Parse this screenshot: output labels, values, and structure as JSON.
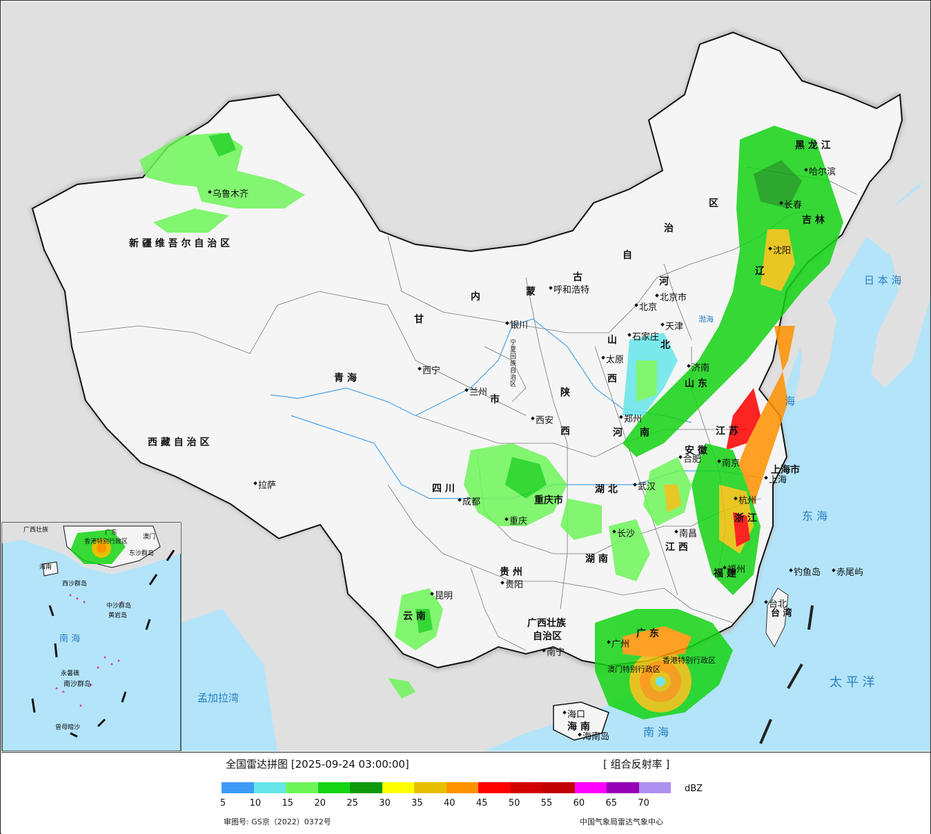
{
  "map": {
    "provinces": [
      {
        "key": "xinjiang",
        "label": "新 疆 维 吾 尔 自 治 区"
      },
      {
        "key": "xizang",
        "label": "西 藏 自 治 区"
      },
      {
        "key": "qinghai",
        "label": "青    海"
      },
      {
        "key": "gansu",
        "label": "甘"
      },
      {
        "key": "neimenggu_1",
        "label": "内"
      },
      {
        "key": "neimenggu_2",
        "label": "蒙"
      },
      {
        "key": "neimenggu_3",
        "label": "古"
      },
      {
        "key": "neimenggu_4",
        "label": "自"
      },
      {
        "key": "neimenggu_5",
        "label": "治"
      },
      {
        "key": "neimenggu_6",
        "label": "区"
      },
      {
        "key": "heilongjiang",
        "label": "黑  龙  江"
      },
      {
        "key": "jilin",
        "label": "吉  林"
      },
      {
        "key": "liaoning",
        "label": "辽"
      },
      {
        "key": "hebei",
        "label": "河"
      },
      {
        "key": "hebei2",
        "label": "北"
      },
      {
        "key": "shanxi",
        "label": "山"
      },
      {
        "key": "shanxi2",
        "label": "西"
      },
      {
        "key": "shaanxi",
        "label": "陕"
      },
      {
        "key": "shaanxi2",
        "label": "西"
      },
      {
        "key": "shandong",
        "label": "山  东"
      },
      {
        "key": "henan",
        "label": "河"
      },
      {
        "key": "henan2",
        "label": "南"
      },
      {
        "key": "sichuan",
        "label": "四    川"
      },
      {
        "key": "chongqing",
        "label": "重庆市"
      },
      {
        "key": "hubei",
        "label": "湖    北"
      },
      {
        "key": "hunan",
        "label": "湖  南"
      },
      {
        "key": "anhui",
        "label": "安  徽"
      },
      {
        "key": "jiangsu",
        "label": "江  苏"
      },
      {
        "key": "shanghai",
        "label": "上海市"
      },
      {
        "key": "zhejiang",
        "label": "浙  江"
      },
      {
        "key": "jiangxi",
        "label": "江    西"
      },
      {
        "key": "fujian",
        "label": "福  建"
      },
      {
        "key": "guizhou",
        "label": "贵  州"
      },
      {
        "key": "yunnan",
        "label": "云    南"
      },
      {
        "key": "guangxi",
        "label": "广西壮族"
      },
      {
        "key": "guangxi2",
        "label": "自治区"
      },
      {
        "key": "guangdong",
        "label": "广  东"
      },
      {
        "key": "hainan",
        "label": "海  南"
      },
      {
        "key": "ningxia",
        "label": "宁夏回族自治区"
      },
      {
        "key": "gansu_shi",
        "label": "市"
      },
      {
        "key": "taiwan",
        "label": "台  湾"
      },
      {
        "key": "hongkong",
        "label": "香港特别行政区"
      },
      {
        "key": "macau",
        "label": "澳门特别行政区"
      }
    ],
    "cities": [
      {
        "key": "urumqi",
        "label": "乌鲁木齐"
      },
      {
        "key": "lhasa",
        "label": "拉萨"
      },
      {
        "key": "xining",
        "label": "西宁"
      },
      {
        "key": "lanzhou",
        "label": "兰州"
      },
      {
        "key": "yinchuan",
        "label": "银川"
      },
      {
        "key": "hohhot",
        "label": "呼和浩特"
      },
      {
        "key": "beijing",
        "label": "北京"
      },
      {
        "key": "beijing_city",
        "label": "北京市"
      },
      {
        "key": "tianjin",
        "label": "天津"
      },
      {
        "key": "shijiazhuang",
        "label": "石家庄"
      },
      {
        "key": "taiyuan",
        "label": "太原"
      },
      {
        "key": "jinan",
        "label": "济南"
      },
      {
        "key": "zhengzhou",
        "label": "郑州"
      },
      {
        "key": "xian",
        "label": "西安"
      },
      {
        "key": "chengdu",
        "label": "成都"
      },
      {
        "key": "chongqing_c",
        "label": "重庆"
      },
      {
        "key": "wuhan",
        "label": "武汉"
      },
      {
        "key": "hefei",
        "label": "合肥"
      },
      {
        "key": "nanjing",
        "label": "南京"
      },
      {
        "key": "shanghai_c",
        "label": "上海"
      },
      {
        "key": "hangzhou",
        "label": "杭州"
      },
      {
        "key": "nanchang",
        "label": "南昌"
      },
      {
        "key": "changsha",
        "label": "长沙"
      },
      {
        "key": "fuzhou",
        "label": "福州"
      },
      {
        "key": "guiyang",
        "label": "贵阳"
      },
      {
        "key": "kunming",
        "label": "昆明"
      },
      {
        "key": "nanning",
        "label": "南宁"
      },
      {
        "key": "guangzhou",
        "label": "广州"
      },
      {
        "key": "haikou",
        "label": "海口"
      },
      {
        "key": "taibei",
        "label": "台北"
      },
      {
        "key": "harbin",
        "label": "哈尔滨"
      },
      {
        "key": "changchun",
        "label": "长春"
      },
      {
        "key": "shenyang",
        "label": "沈阳"
      },
      {
        "key": "hainandao",
        "label": "海南岛"
      },
      {
        "key": "diaoyudao",
        "label": "钓鱼岛"
      },
      {
        "key": "chiweiyu",
        "label": "赤尾屿"
      }
    ],
    "seas": [
      {
        "key": "japan_sea",
        "label": "日 本 海"
      },
      {
        "key": "huanghai",
        "label": "海"
      },
      {
        "key": "donghai",
        "label": "东  海"
      },
      {
        "key": "pacific",
        "label": "太  平  洋"
      },
      {
        "key": "nanhai_main",
        "label": "南    海"
      },
      {
        "key": "bengal",
        "label": "孟加拉湾"
      },
      {
        "key": "bohai",
        "label": "渤海"
      }
    ],
    "inset": {
      "labels": [
        {
          "key": "guangxi_inset",
          "label": "广西壮族"
        },
        {
          "key": "guangdong_inset",
          "label": "广东"
        },
        {
          "key": "hk_inset",
          "label": "香港特别行政区"
        },
        {
          "key": "macau_inset",
          "label": "澳门"
        },
        {
          "key": "hainan_inset",
          "label": "海南"
        },
        {
          "key": "xisha",
          "label": "西沙群岛"
        },
        {
          "key": "zhongsha",
          "label": "中沙群岛"
        },
        {
          "key": "huangyan",
          "label": "黄岩岛"
        },
        {
          "key": "nanhai_inset",
          "label": "南  海"
        },
        {
          "key": "nansha",
          "label": "南沙群岛"
        },
        {
          "key": "yongshu",
          "label": "永暑礁"
        },
        {
          "key": "zengmu",
          "label": "曾母暗沙"
        },
        {
          "key": "dongsha",
          "label": "东沙群岛"
        }
      ]
    }
  },
  "legend": {
    "title": "全国雷达拼图 [2025-09-24 03:00:00]",
    "product": "[ 组合反射率 ]",
    "unit": "dBZ",
    "colors": [
      "#3e9bf5",
      "#66e6ea",
      "#6ef55a",
      "#14d414",
      "#0c9a0c",
      "#ffff00",
      "#e6c000",
      "#ff9200",
      "#ff0000",
      "#d20000",
      "#c00000",
      "#ff00ff",
      "#9600b4",
      "#ad90f0"
    ],
    "ticks": [
      "5",
      "10",
      "15",
      "20",
      "25",
      "30",
      "35",
      "40",
      "45",
      "50",
      "55",
      "60",
      "65",
      "70"
    ],
    "approval": "审图号: GS京（2022）0372号",
    "source": "中国气象局雷达气象中心"
  }
}
